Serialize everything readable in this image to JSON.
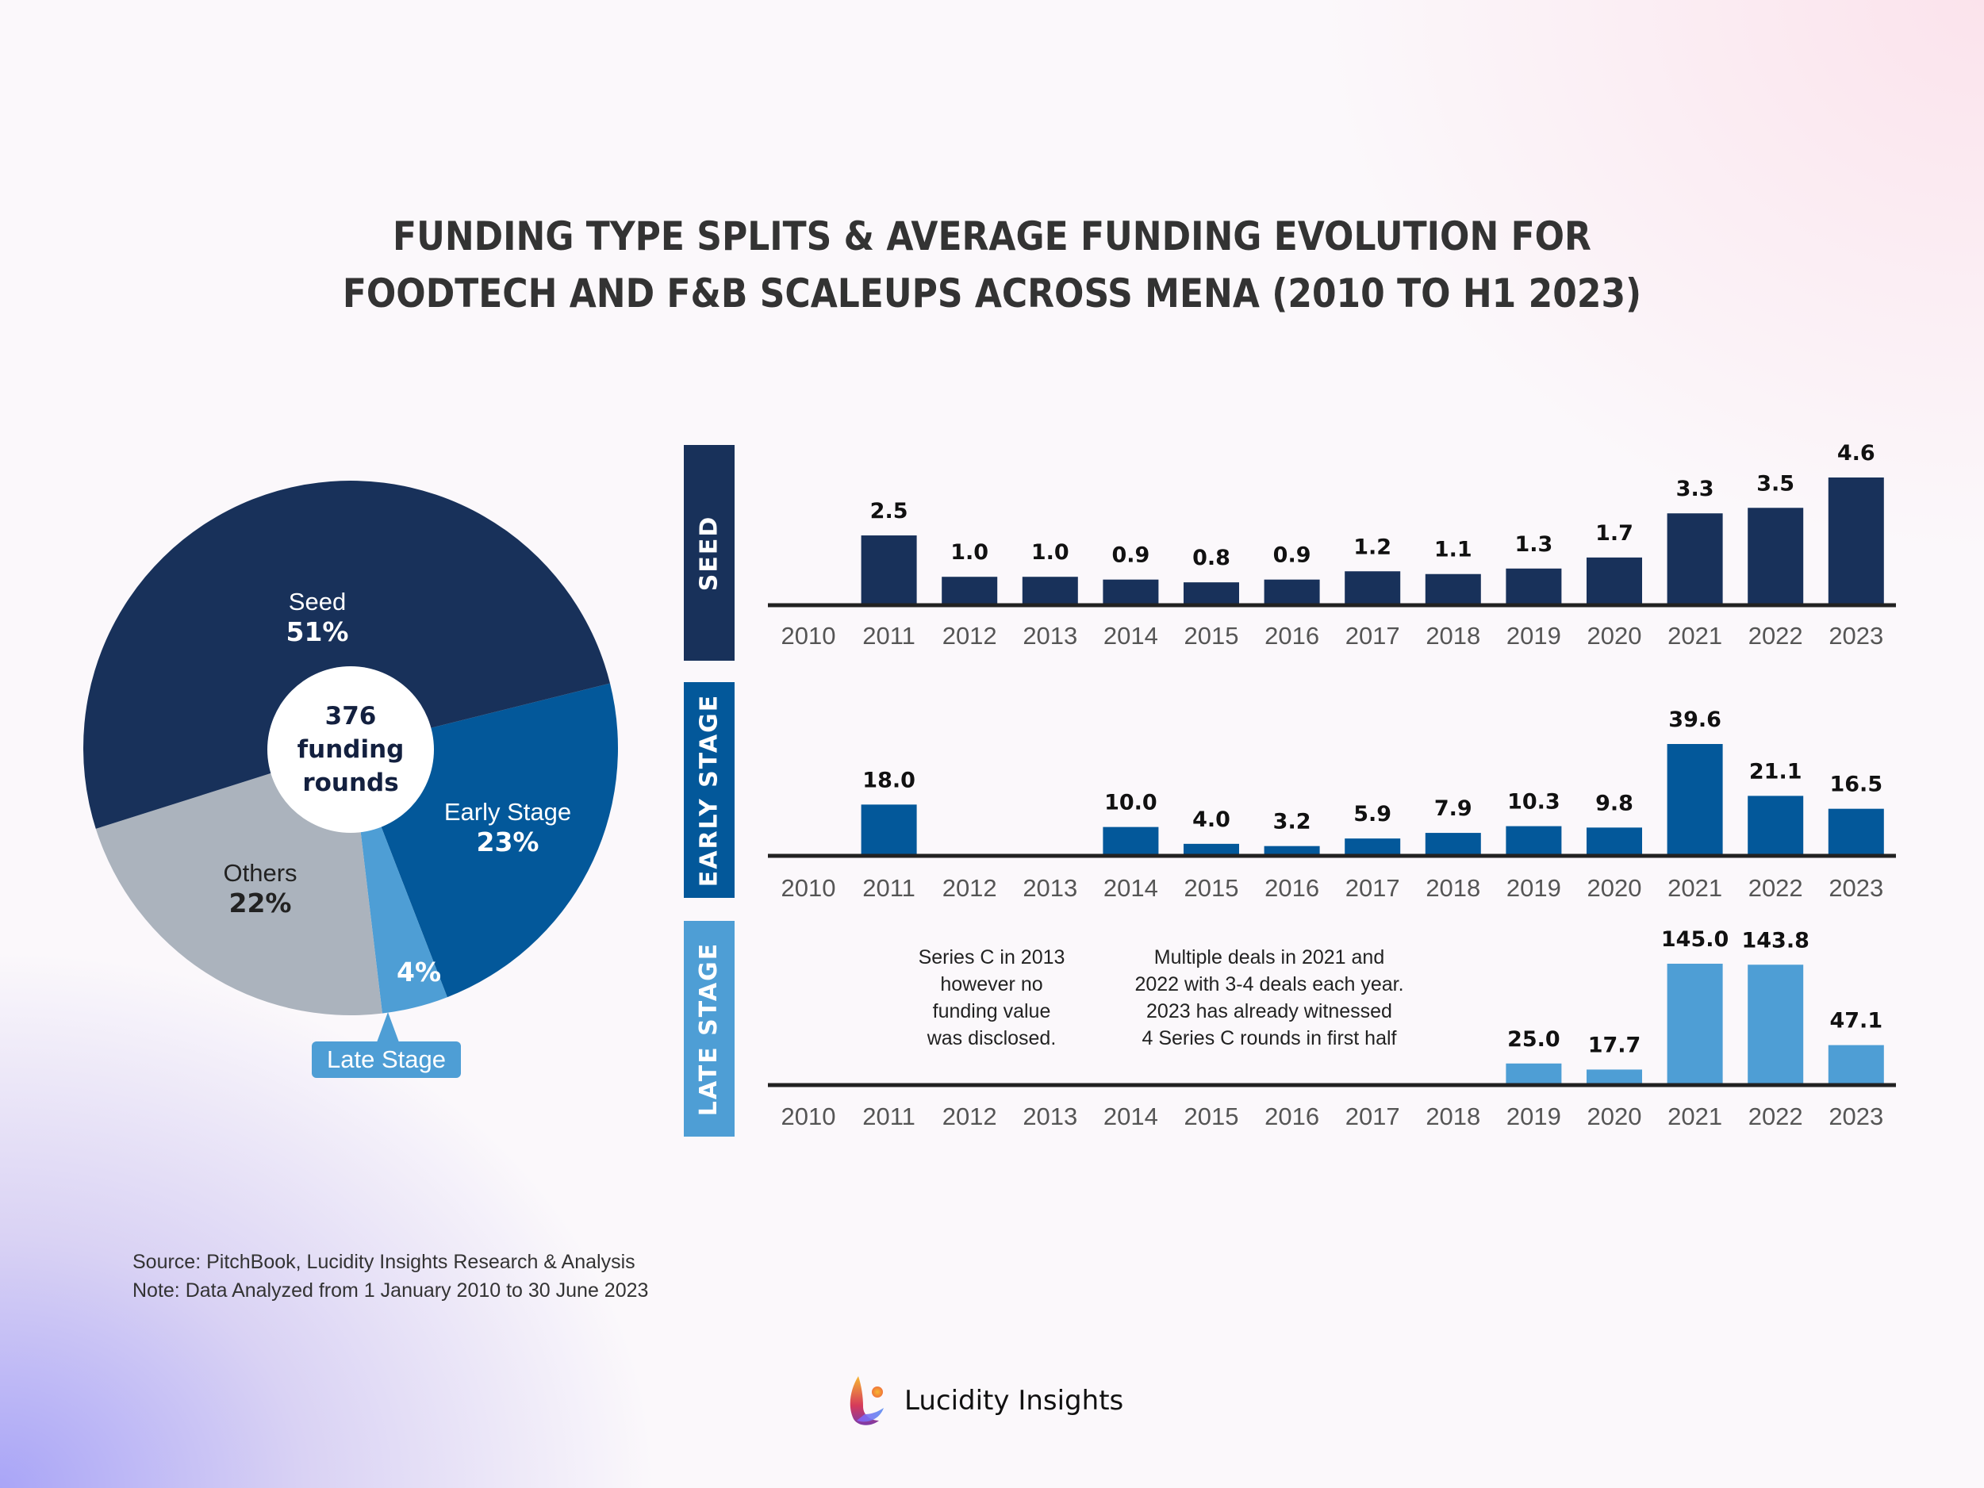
{
  "title": {
    "line1": "FUNDING TYPE SPLITS & AVERAGE FUNDING EVOLUTION FOR",
    "line2": "FOODTECH AND F&B SCALEUPS ACROSS MENA (2010 TO H1 2023)"
  },
  "colors": {
    "seed": "#18315a",
    "early": "#03589a",
    "late": "#4e9ed5",
    "others": "#abb3bd",
    "axis": "#222222",
    "year_label": "#555555",
    "value_label": "#111111"
  },
  "chart_data": [
    {
      "type": "pie",
      "title": "Funding type splits",
      "center_label": [
        "376",
        "funding",
        "rounds"
      ],
      "total_rounds": 376,
      "slices": [
        {
          "name": "Seed",
          "value": 51,
          "label": "51%"
        },
        {
          "name": "Early Stage",
          "value": 23,
          "label": "23%"
        },
        {
          "name": "Late Stage",
          "value": 4,
          "label": "4%"
        },
        {
          "name": "Others",
          "value": 22,
          "label": "22%"
        }
      ],
      "callout": "Late Stage"
    },
    {
      "type": "bar",
      "title": "SEED",
      "categories": [
        "2010",
        "2011",
        "2012",
        "2013",
        "2014",
        "2015",
        "2016",
        "2017",
        "2018",
        "2019",
        "2020",
        "2021",
        "2022",
        "2023"
      ],
      "values": [
        null,
        2.5,
        1.0,
        1.0,
        0.9,
        0.8,
        0.9,
        1.2,
        1.1,
        1.3,
        1.7,
        3.3,
        3.5,
        4.6
      ],
      "labels": [
        "",
        "2.5",
        "1.0",
        "1.0",
        "0.9",
        "0.8",
        "0.9",
        "1.2",
        "1.1",
        "1.3",
        "1.7",
        "3.3",
        "3.5",
        "4.6"
      ],
      "ylim": [
        0,
        4.6
      ]
    },
    {
      "type": "bar",
      "title": "EARLY STAGE",
      "categories": [
        "2010",
        "2011",
        "2012",
        "2013",
        "2014",
        "2015",
        "2016",
        "2017",
        "2018",
        "2019",
        "2020",
        "2021",
        "2022",
        "2023"
      ],
      "values": [
        null,
        18.0,
        null,
        null,
        10.0,
        4.0,
        3.2,
        5.9,
        7.9,
        10.3,
        9.8,
        39.6,
        21.1,
        16.5
      ],
      "labels": [
        "",
        "18.0",
        "",
        "",
        "10.0",
        "4.0",
        "3.2",
        "5.9",
        "7.9",
        "10.3",
        "9.8",
        "39.6",
        "21.1",
        "16.5"
      ],
      "ylim": [
        0,
        39.6
      ]
    },
    {
      "type": "bar",
      "title": "LATE STAGE",
      "categories": [
        "2010",
        "2011",
        "2012",
        "2013",
        "2014",
        "2015",
        "2016",
        "2017",
        "2018",
        "2019",
        "2020",
        "2021",
        "2022",
        "2023"
      ],
      "values": [
        null,
        null,
        null,
        null,
        null,
        null,
        null,
        null,
        null,
        25.0,
        17.7,
        145.0,
        143.8,
        47.1
      ],
      "labels": [
        "",
        "",
        "",
        "",
        "",
        "",
        "",
        "",
        "",
        "25.0",
        "17.7",
        "145.0",
        "143.8",
        "47.1"
      ],
      "ylim": [
        0,
        145.0
      ],
      "annotations": [
        [
          "Series C in 2013",
          "however no",
          "funding value",
          "was disclosed."
        ],
        [
          "Multiple deals in 2021 and",
          "2022 with 3-4 deals each year.",
          "2023 has already witnessed",
          "4 Series C rounds in first half"
        ]
      ]
    }
  ],
  "footer": {
    "source": "Source: PitchBook, Lucidity Insights Research & Analysis",
    "note": "Note: Data Analyzed from 1 January 2010 to 30 June 2023"
  },
  "brand": {
    "name": "Lucidity Insights",
    "logo_icon": "lucidity-logo-icon"
  }
}
